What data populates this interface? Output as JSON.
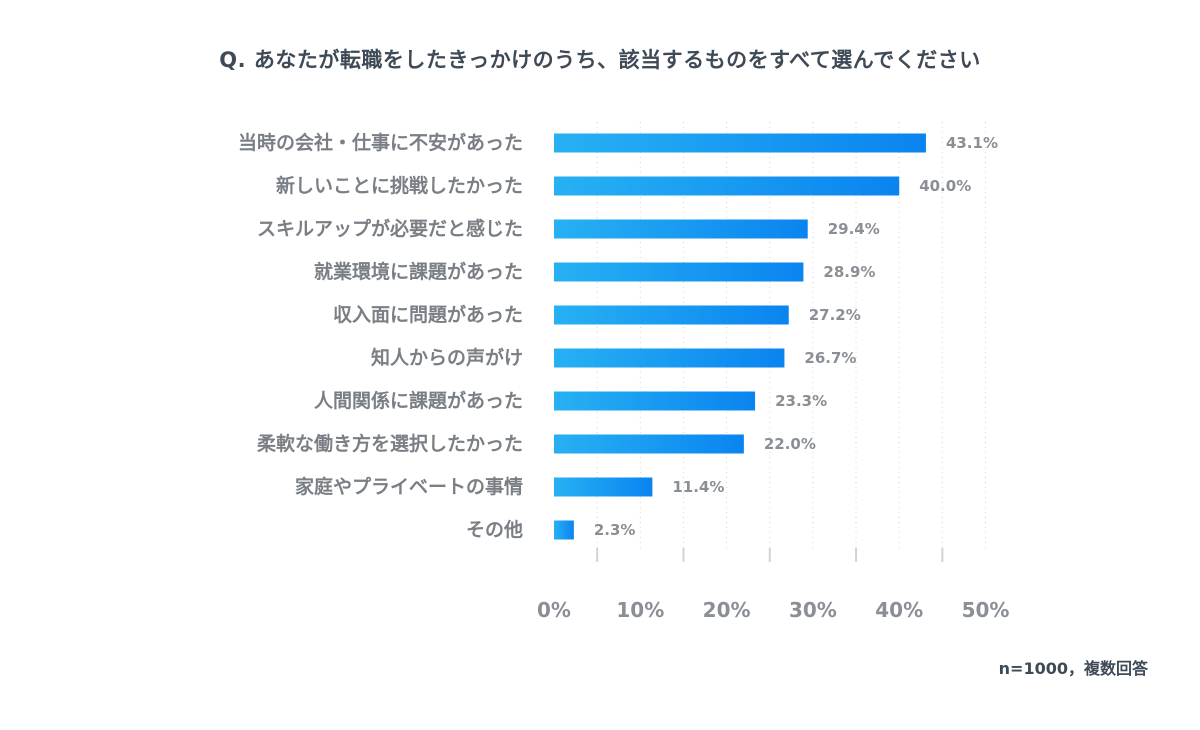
{
  "chart_data": {
    "type": "bar",
    "orientation": "horizontal",
    "title": "Q. あなたが転職をしたきっかけのうち、該当するものをすべて選んでください",
    "categories": [
      "当時の会社・仕事に不安があった",
      "新しいことに挑戦したかった",
      "スキルアップが必要だと感じた",
      "就業環境に課題があった",
      "収入面に問題があった",
      "知人からの声がけ",
      "人間関係に課題があった",
      "柔軟な働き方を選択したかった",
      "家庭やプライベートの事情",
      "その他"
    ],
    "values": [
      43.1,
      40.0,
      29.4,
      28.9,
      27.2,
      26.7,
      23.3,
      22.0,
      11.4,
      2.3
    ],
    "value_labels": [
      "43.1%",
      "40.0%",
      "29.4%",
      "28.9%",
      "27.2%",
      "26.7%",
      "23.3%",
      "22.0%",
      "11.4%",
      "2.3%"
    ],
    "xlim": [
      0,
      50
    ],
    "xticks": [
      0,
      10,
      20,
      30,
      40,
      50
    ],
    "xtick_labels": [
      "0%",
      "10%",
      "20%",
      "30%",
      "40%",
      "50%"
    ],
    "grid": true,
    "xlabel": "",
    "ylabel": "",
    "colors": {
      "bar_start": "#27b1f3",
      "bar_end": "#0a84f0",
      "grid": "#d0d4d8",
      "text": "#7a7f86",
      "title": "#3f4a57"
    }
  },
  "note": "n=1000，複数回答"
}
